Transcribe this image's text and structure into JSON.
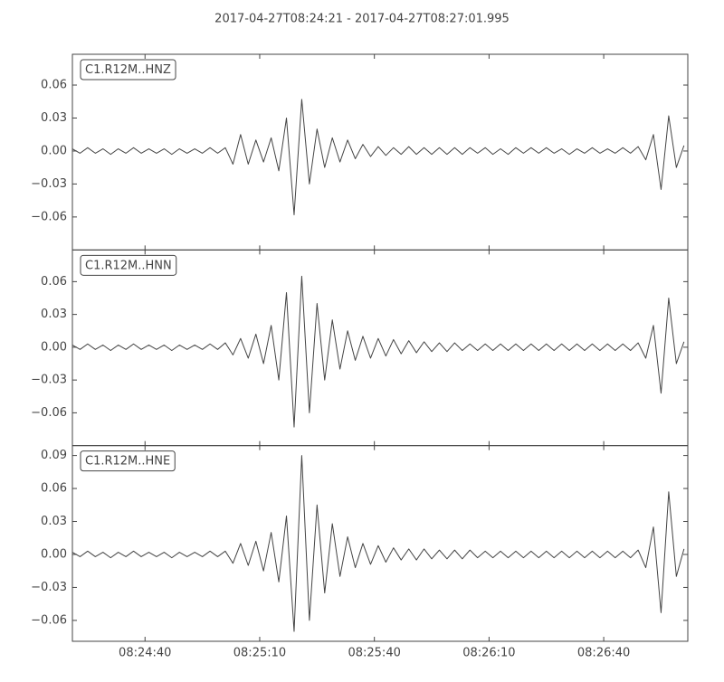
{
  "title": "2017-04-27T08:24:21  -  2017-04-27T08:27:01.995",
  "chart_data": [
    {
      "type": "line",
      "label": "C1.R12M..HNZ",
      "color": "#444444",
      "x": [
        0,
        2,
        4,
        6,
        8,
        10,
        12,
        14,
        16,
        18,
        20,
        22,
        24,
        26,
        28,
        30,
        32,
        34,
        36,
        38,
        40,
        42,
        44,
        46,
        48,
        50,
        52,
        54,
        56,
        58,
        60,
        62,
        64,
        66,
        68,
        70,
        72,
        74,
        76,
        78,
        80,
        82,
        84,
        86,
        88,
        90,
        92,
        94,
        96,
        98,
        100,
        102,
        104,
        106,
        108,
        110,
        112,
        114,
        116,
        118,
        120,
        122,
        124,
        126,
        128,
        130,
        132,
        134,
        136,
        138,
        140,
        142,
        144,
        146,
        148,
        150,
        152,
        154,
        156,
        158,
        160
      ],
      "values": [
        0.002,
        -0.002,
        0.003,
        -0.002,
        0.002,
        -0.003,
        0.002,
        -0.002,
        0.003,
        -0.002,
        0.002,
        -0.002,
        0.002,
        -0.003,
        0.002,
        -0.002,
        0.002,
        -0.002,
        0.003,
        -0.002,
        0.003,
        -0.012,
        0.015,
        -0.012,
        0.01,
        -0.01,
        0.012,
        -0.018,
        0.03,
        -0.058,
        0.047,
        -0.03,
        0.02,
        -0.015,
        0.012,
        -0.01,
        0.01,
        -0.007,
        0.006,
        -0.005,
        0.004,
        -0.004,
        0.003,
        -0.003,
        0.004,
        -0.003,
        0.003,
        -0.003,
        0.003,
        -0.003,
        0.003,
        -0.003,
        0.003,
        -0.002,
        0.003,
        -0.003,
        0.002,
        -0.003,
        0.003,
        -0.002,
        0.003,
        -0.002,
        0.003,
        -0.002,
        0.002,
        -0.003,
        0.002,
        -0.002,
        0.003,
        -0.002,
        0.002,
        -0.002,
        0.003,
        -0.002,
        0.004,
        -0.008,
        0.015,
        -0.035,
        0.032,
        -0.015,
        0.005
      ],
      "xlim": [
        0,
        160.995
      ],
      "ylim": [
        -0.09,
        0.088
      ],
      "yticks": [
        0.06,
        0.03,
        {
          "value": 0,
          "label": "0.00"
        },
        {
          "value": -0.03,
          "label": "−0.03"
        },
        {
          "value": -0.06,
          "label": "−0.06"
        }
      ]
    },
    {
      "type": "line",
      "label": "C1.R12M..HNN",
      "color": "#444444",
      "x": [
        0,
        2,
        4,
        6,
        8,
        10,
        12,
        14,
        16,
        18,
        20,
        22,
        24,
        26,
        28,
        30,
        32,
        34,
        36,
        38,
        40,
        42,
        44,
        46,
        48,
        50,
        52,
        54,
        56,
        58,
        60,
        62,
        64,
        66,
        68,
        70,
        72,
        74,
        76,
        78,
        80,
        82,
        84,
        86,
        88,
        90,
        92,
        94,
        96,
        98,
        100,
        102,
        104,
        106,
        108,
        110,
        112,
        114,
        116,
        118,
        120,
        122,
        124,
        126,
        128,
        130,
        132,
        134,
        136,
        138,
        140,
        142,
        144,
        146,
        148,
        150,
        152,
        154,
        156,
        158,
        160
      ],
      "values": [
        0.002,
        -0.002,
        0.003,
        -0.002,
        0.002,
        -0.003,
        0.002,
        -0.002,
        0.003,
        -0.002,
        0.002,
        -0.002,
        0.002,
        -0.003,
        0.002,
        -0.002,
        0.002,
        -0.002,
        0.003,
        -0.002,
        0.004,
        -0.007,
        0.008,
        -0.01,
        0.012,
        -0.015,
        0.02,
        -0.03,
        0.05,
        -0.073,
        0.065,
        -0.06,
        0.04,
        -0.03,
        0.025,
        -0.02,
        0.015,
        -0.012,
        0.01,
        -0.01,
        0.008,
        -0.008,
        0.007,
        -0.006,
        0.006,
        -0.005,
        0.005,
        -0.004,
        0.004,
        -0.004,
        0.004,
        -0.003,
        0.003,
        -0.003,
        0.003,
        -0.003,
        0.003,
        -0.003,
        0.003,
        -0.003,
        0.003,
        -0.003,
        0.003,
        -0.003,
        0.003,
        -0.003,
        0.003,
        -0.003,
        0.003,
        -0.003,
        0.003,
        -0.003,
        0.003,
        -0.003,
        0.004,
        -0.01,
        0.02,
        -0.042,
        0.045,
        -0.015,
        0.005
      ],
      "xlim": [
        0,
        160.995
      ],
      "ylim": [
        -0.09,
        0.089
      ],
      "yticks": [
        0.06,
        0.03,
        {
          "value": 0,
          "label": "0.00"
        },
        {
          "value": -0.03,
          "label": "−0.03"
        },
        {
          "value": -0.06,
          "label": "−0.06"
        }
      ]
    },
    {
      "type": "line",
      "label": "C1.R12M..HNE",
      "color": "#444444",
      "x": [
        0,
        2,
        4,
        6,
        8,
        10,
        12,
        14,
        16,
        18,
        20,
        22,
        24,
        26,
        28,
        30,
        32,
        34,
        36,
        38,
        40,
        42,
        44,
        46,
        48,
        50,
        52,
        54,
        56,
        58,
        60,
        62,
        64,
        66,
        68,
        70,
        72,
        74,
        76,
        78,
        80,
        82,
        84,
        86,
        88,
        90,
        92,
        94,
        96,
        98,
        100,
        102,
        104,
        106,
        108,
        110,
        112,
        114,
        116,
        118,
        120,
        122,
        124,
        126,
        128,
        130,
        132,
        134,
        136,
        138,
        140,
        142,
        144,
        146,
        148,
        150,
        152,
        154,
        156,
        158,
        160
      ],
      "values": [
        0.002,
        -0.002,
        0.003,
        -0.002,
        0.002,
        -0.003,
        0.002,
        -0.002,
        0.003,
        -0.002,
        0.002,
        -0.002,
        0.002,
        -0.003,
        0.002,
        -0.002,
        0.002,
        -0.002,
        0.003,
        -0.002,
        0.003,
        -0.008,
        0.01,
        -0.01,
        0.012,
        -0.015,
        0.02,
        -0.025,
        0.035,
        -0.07,
        0.09,
        -0.06,
        0.045,
        -0.035,
        0.028,
        -0.02,
        0.016,
        -0.012,
        0.01,
        -0.009,
        0.008,
        -0.007,
        0.006,
        -0.005,
        0.005,
        -0.005,
        0.005,
        -0.004,
        0.004,
        -0.004,
        0.004,
        -0.004,
        0.004,
        -0.003,
        0.003,
        -0.003,
        0.003,
        -0.003,
        0.003,
        -0.003,
        0.003,
        -0.003,
        0.003,
        -0.003,
        0.003,
        -0.003,
        0.003,
        -0.003,
        0.003,
        -0.003,
        0.003,
        -0.003,
        0.003,
        -0.003,
        0.004,
        -0.012,
        0.025,
        -0.053,
        0.057,
        -0.02,
        0.005
      ],
      "xlim": [
        0,
        160.995
      ],
      "ylim": [
        -0.079,
        0.099
      ],
      "yticks": [
        0.09,
        0.06,
        0.03,
        {
          "value": 0,
          "label": "0.00"
        },
        {
          "value": -0.03,
          "label": "−0.03"
        },
        {
          "value": -0.06,
          "label": "−0.06"
        }
      ],
      "xticks": [
        {
          "value": 19,
          "label": "08:24:40"
        },
        {
          "value": 49,
          "label": "08:25:10"
        },
        {
          "value": 79,
          "label": "08:25:40"
        },
        {
          "value": 109,
          "label": "08:26:10"
        },
        {
          "value": 139,
          "label": "08:26:40"
        }
      ]
    }
  ]
}
